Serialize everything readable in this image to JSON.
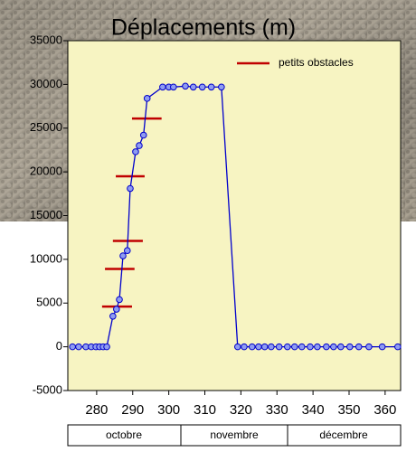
{
  "chart_data": {
    "type": "line",
    "title": "Déplacements (m)",
    "xlim": [
      272,
      364.3
    ],
    "ylim": [
      -5000,
      35000
    ],
    "xticks": [
      280,
      290,
      300,
      310,
      320,
      330,
      340,
      350,
      360
    ],
    "yticks": [
      -5000,
      0,
      5000,
      10000,
      15000,
      20000,
      25000,
      30000,
      35000
    ],
    "months": [
      "octobre",
      "novembre",
      "décembre"
    ],
    "series": [
      {
        "color": "#0000cc",
        "marker_color": "#8f9cf0",
        "x": [
          273.3,
          275,
          277,
          278.5,
          279.8,
          280.8,
          281.8,
          282.8,
          284.5,
          285.5,
          286.3,
          287.3,
          288.5,
          289.3,
          290.8,
          291.8,
          293,
          294,
          298.3,
          300,
          301.3,
          304.6,
          306.8,
          309.3,
          311.8,
          314.6,
          319.1,
          320.9,
          323.1,
          324.9,
          326.6,
          328.4,
          330.6,
          332.9,
          334.9,
          336.9,
          339.2,
          341.2,
          343.7,
          345.7,
          347.7,
          350.2,
          352.7,
          355.5,
          359.2,
          363.5
        ],
        "values": [
          0,
          0,
          0,
          0,
          0,
          0,
          0,
          0,
          3500,
          4300,
          5400,
          10400,
          11000,
          18100,
          22300,
          23000,
          24200,
          28400,
          29700,
          29700,
          29700,
          29800,
          29700,
          29700,
          29700,
          29700,
          0,
          0,
          0,
          0,
          0,
          0,
          0,
          0,
          0,
          0,
          0,
          0,
          0,
          0,
          0,
          0,
          0,
          0,
          0,
          0
        ]
      }
    ],
    "obstacles": {
      "name": "petits obstacles",
      "color": "#c00000",
      "segments": [
        {
          "y": 4600,
          "x": [
            281.5,
            289.8
          ]
        },
        {
          "y": 8900,
          "x": [
            282.3,
            290.5
          ]
        },
        {
          "y": 12100,
          "x": [
            284.5,
            292.8
          ]
        },
        {
          "y": 19500,
          "x": [
            285.3,
            293.3
          ]
        },
        {
          "y": 26100,
          "x": [
            289.8,
            298
          ]
        }
      ]
    }
  }
}
